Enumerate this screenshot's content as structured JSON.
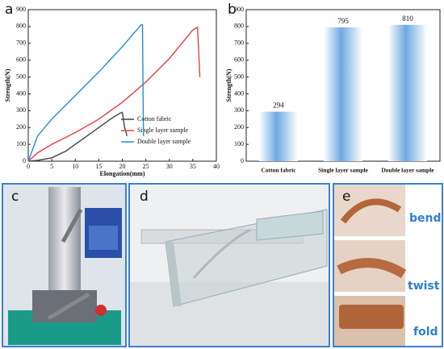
{
  "chart_data": [
    {
      "type": "line",
      "panel_label": "a",
      "x_label": "Elongation(mm)",
      "y_label": "Strength(N)",
      "xlim": [
        0,
        40
      ],
      "xticks": [
        0,
        5,
        10,
        15,
        20,
        25,
        30,
        35,
        40
      ],
      "ylim": [
        0,
        900
      ],
      "yticks": [
        0,
        100,
        200,
        300,
        400,
        500,
        600,
        700,
        800,
        900
      ],
      "legend": "lower right",
      "series": [
        {
          "name": "Cotton fabric",
          "color": "#444444",
          "x": [
            0,
            2,
            5,
            8,
            10,
            12,
            15,
            18,
            19.5,
            20,
            20.5,
            21
          ],
          "values": [
            0,
            5,
            20,
            60,
            100,
            140,
            200,
            260,
            285,
            290,
            200,
            150
          ]
        },
        {
          "name": "Single layer sample",
          "color": "#e84040",
          "x": [
            0,
            2,
            5,
            10,
            15,
            20,
            25,
            30,
            35,
            36,
            36.5
          ],
          "values": [
            0,
            50,
            100,
            170,
            250,
            350,
            470,
            610,
            780,
            795,
            500
          ]
        },
        {
          "name": "Double layer sample",
          "color": "#1e8fd8",
          "x": [
            0,
            2,
            5,
            10,
            15,
            20,
            24,
            24.3,
            24.5
          ],
          "values": [
            0,
            150,
            250,
            390,
            530,
            680,
            810,
            810,
            150
          ]
        }
      ]
    },
    {
      "type": "bar",
      "panel_label": "b",
      "y_label": "Strength(N)",
      "categories": [
        "Cotton fabric",
        "Single layer sample",
        "Double layer sample"
      ],
      "values": [
        294,
        795,
        810
      ],
      "color": "#6fa8e0",
      "ylim": [
        0,
        900
      ],
      "yticks": [
        0,
        100,
        200,
        300,
        400,
        500,
        600,
        700,
        800,
        900
      ]
    }
  ],
  "photos": [
    {
      "label": "c"
    },
    {
      "label": "d"
    },
    {
      "label": "e",
      "captions": [
        "bend",
        "twist",
        "fold"
      ]
    }
  ]
}
